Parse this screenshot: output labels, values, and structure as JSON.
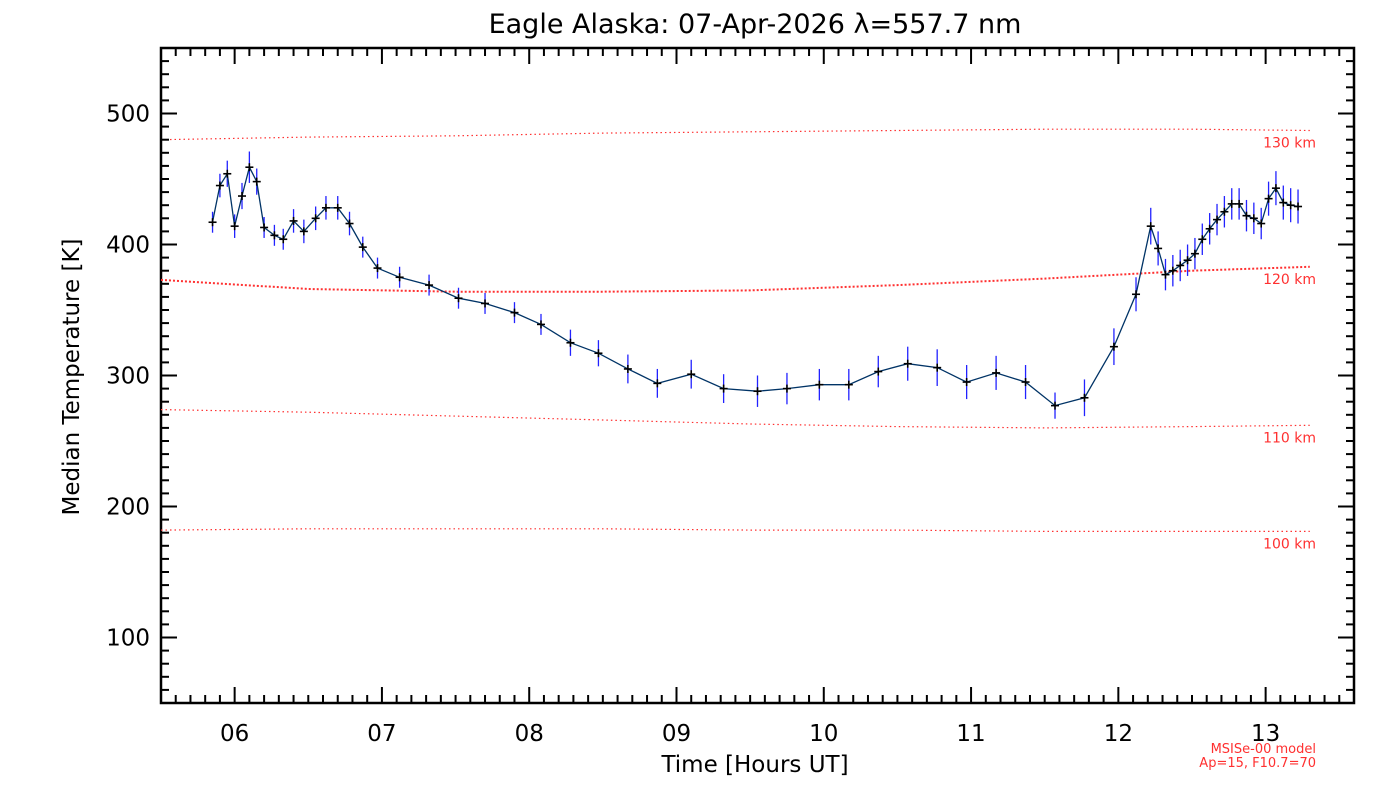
{
  "chart_data": {
    "type": "line",
    "title": "Eagle Alaska: 07-Apr-2026 λ=557.7 nm",
    "xlabel": "Time [Hours UT]",
    "ylabel": "Median Temperature [K]",
    "xlim": [
      5.5,
      13.6
    ],
    "ylim": [
      50,
      550
    ],
    "x_ticks": [
      {
        "v": 6,
        "label": "06"
      },
      {
        "v": 7,
        "label": "07"
      },
      {
        "v": 8,
        "label": "08"
      },
      {
        "v": 9,
        "label": "09"
      },
      {
        "v": 10,
        "label": "10"
      },
      {
        "v": 11,
        "label": "11"
      },
      {
        "v": 12,
        "label": "12"
      },
      {
        "v": 13,
        "label": "13"
      }
    ],
    "y_ticks": [
      {
        "v": 100,
        "label": "100"
      },
      {
        "v": 200,
        "label": "200"
      },
      {
        "v": 300,
        "label": "300"
      },
      {
        "v": 400,
        "label": "400"
      },
      {
        "v": 500,
        "label": "500"
      }
    ],
    "series": [
      {
        "name": "Median Temperature",
        "color": "#003366",
        "marker_color": "#000000",
        "errorbar_color": "#2222ff",
        "x": [
          5.85,
          5.9,
          5.95,
          6.0,
          6.05,
          6.1,
          6.15,
          6.2,
          6.27,
          6.33,
          6.4,
          6.47,
          6.55,
          6.62,
          6.7,
          6.78,
          6.87,
          6.97,
          7.12,
          7.32,
          7.52,
          7.7,
          7.9,
          8.08,
          8.28,
          8.47,
          8.67,
          8.87,
          9.1,
          9.32,
          9.55,
          9.75,
          9.97,
          10.17,
          10.37,
          10.57,
          10.77,
          10.97,
          11.17,
          11.37,
          11.57,
          11.77,
          11.97,
          12.12,
          12.22,
          12.27,
          12.32,
          12.37,
          12.42,
          12.47,
          12.52,
          12.57,
          12.62,
          12.67,
          12.72,
          12.77,
          12.82,
          12.87,
          12.92,
          12.97,
          13.02,
          13.07,
          13.12,
          13.17,
          13.22
        ],
        "y": [
          417,
          445,
          454,
          414,
          437,
          459,
          448,
          413,
          407,
          404,
          418,
          410,
          420,
          428,
          428,
          416,
          398,
          382,
          375,
          369,
          359,
          355,
          348,
          339,
          325,
          317,
          305,
          294,
          301,
          290,
          288,
          290,
          293,
          293,
          303,
          309,
          306,
          295,
          302,
          295,
          277,
          283,
          322,
          362,
          414,
          397,
          377,
          380,
          384,
          388,
          393,
          404,
          412,
          419,
          425,
          431,
          431,
          422,
          420,
          416,
          435,
          443,
          432,
          430,
          429
        ],
        "errors": [
          8,
          9,
          10,
          9,
          10,
          12,
          10,
          8,
          8,
          8,
          9,
          9,
          9,
          9,
          9,
          9,
          8,
          8,
          8,
          8,
          8,
          8,
          8,
          8,
          10,
          10,
          11,
          11,
          11,
          11,
          12,
          12,
          12,
          12,
          12,
          13,
          14,
          13,
          13,
          13,
          10,
          14,
          14,
          13,
          14,
          13,
          12,
          12,
          12,
          12,
          12,
          12,
          12,
          12,
          12,
          12,
          12,
          12,
          12,
          12,
          13,
          13,
          13,
          13,
          13
        ]
      }
    ],
    "reference_lines": [
      {
        "label": "130 km",
        "x": [
          5.5,
          6.5,
          7.5,
          8.5,
          9.5,
          10.5,
          11.5,
          12.5,
          13.3
        ],
        "y": [
          480,
          482,
          483,
          485,
          486,
          487,
          488,
          488,
          487
        ]
      },
      {
        "label": "120 km",
        "x": [
          5.5,
          6.5,
          7.5,
          8.5,
          9.5,
          10.5,
          11.5,
          12.5,
          13.3
        ],
        "y": [
          373,
          366,
          364,
          364,
          365,
          369,
          374,
          380,
          383
        ]
      },
      {
        "label": "110 km",
        "x": [
          5.5,
          6.5,
          7.5,
          8.5,
          9.5,
          10.5,
          11.5,
          12.5,
          13.3
        ],
        "y": [
          274,
          272,
          269,
          266,
          263,
          261,
          260,
          261,
          262
        ]
      },
      {
        "label": "100 km",
        "x": [
          5.5,
          6.5,
          7.5,
          8.5,
          9.5,
          10.5,
          11.5,
          12.5,
          13.3
        ],
        "y": [
          182,
          183,
          183,
          183,
          182,
          182,
          181,
          181,
          181
        ]
      }
    ],
    "reference_color": "#ff3030",
    "model_note": [
      "MSISe-00 model",
      "Ap=15, F10.7=70"
    ]
  }
}
